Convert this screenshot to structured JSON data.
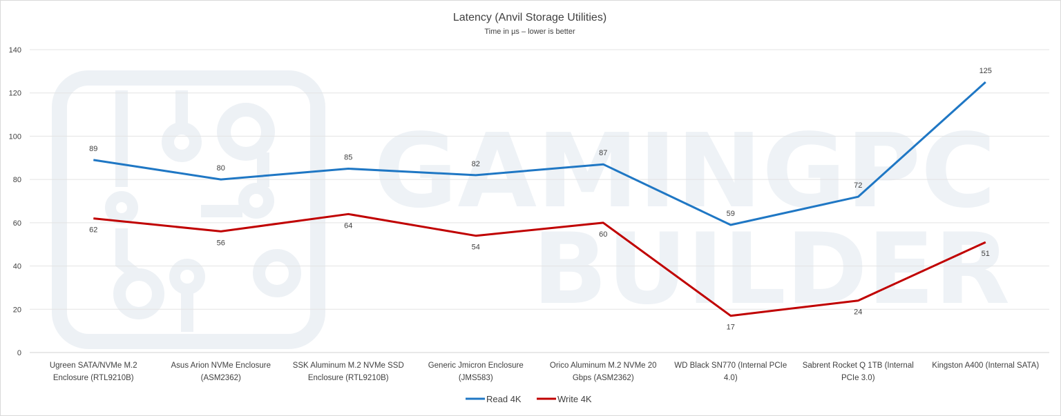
{
  "chart_data": {
    "type": "line",
    "title": "Latency (Anvil Storage Utilities)",
    "subtitle": "Time in µs – lower is better",
    "categories": [
      [
        "Ugreen SATA/NVMe M.2",
        "Enclosure (RTL9210B)"
      ],
      [
        "Asus Arion NVMe Enclosure",
        "(ASM2362)"
      ],
      [
        "SSK Aluminum M.2 NVMe SSD",
        "Enclosure (RTL9210B)"
      ],
      [
        "Generic Jmicron Enclosure",
        "(JMS583)"
      ],
      [
        "Orico Aluminum M.2 NVMe 20",
        "Gbps  (ASM2362)"
      ],
      [
        "WD Black SN770 (Internal PCIe",
        "4.0)"
      ],
      [
        "Sabrent Rocket Q 1TB (Internal",
        "PCIe 3.0)"
      ],
      [
        "Kingston A400 (Internal SATA)"
      ]
    ],
    "series": [
      {
        "name": "Read 4K",
        "color": "#1f77c4",
        "values": [
          89,
          80,
          85,
          82,
          87,
          59,
          72,
          125
        ]
      },
      {
        "name": "Write 4K",
        "color": "#c00000",
        "values": [
          62,
          56,
          64,
          54,
          60,
          17,
          24,
          51
        ]
      }
    ],
    "ylim": [
      0,
      140
    ],
    "yticks": [
      0,
      20,
      40,
      60,
      80,
      100,
      120,
      140
    ],
    "grid": true,
    "legend": "bottom"
  },
  "watermark": {
    "line1": "GAMINGPC",
    "line2": "BUILDER"
  }
}
